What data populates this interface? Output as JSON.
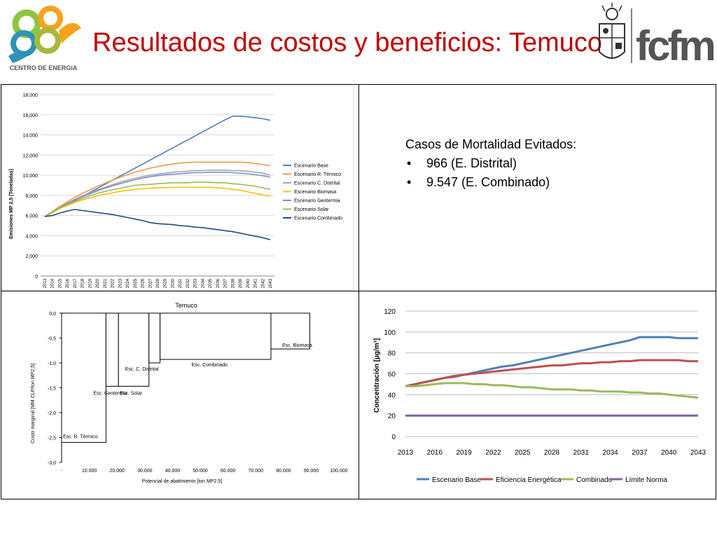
{
  "slide": {
    "title": "Resultados de costos y beneficios: Temuco",
    "logo_left_text": "CENTRO DE ENERGíA",
    "logo_right_text": "fcfm"
  },
  "mortality": {
    "heading": "Casos de Mortalidad Evitados:",
    "items": [
      "966 (E. Distrital)",
      "9.547 (E. Combinado)"
    ]
  },
  "chart_data": [
    {
      "id": "emissions",
      "type": "line",
      "title": "",
      "xlabel": "",
      "ylabel": "Emisiones MP 2,5 [Toneladas]",
      "x": [
        "2013",
        "2014",
        "2015",
        "2016",
        "2017",
        "2018",
        "2019",
        "2020",
        "2021",
        "2022",
        "2023",
        "2024",
        "2025",
        "2026",
        "2027",
        "2028",
        "2029",
        "2030",
        "2031",
        "2032",
        "2033",
        "2034",
        "2035",
        "2036",
        "2037",
        "2038",
        "2039",
        "2040",
        "2041",
        "2042",
        "2043"
      ],
      "ylim": [
        0,
        18000
      ],
      "yticks": [
        0,
        2000,
        4000,
        6000,
        8000,
        10000,
        12000,
        14000,
        16000,
        18000
      ],
      "ytick_labels": [
        "0",
        "2,000",
        "4,000",
        "6,000",
        "8,000",
        "10,000",
        "12,000",
        "14,000",
        "16,000",
        "18,000"
      ],
      "grid": true,
      "legend_position": "right",
      "colors": [
        "#4f81bd",
        "#f79646",
        "#a5a5a5",
        "#ffc000",
        "#7e8fd6",
        "#9bbb59",
        "#1f4e79"
      ],
      "series": [
        {
          "name": "Escenario Base",
          "values": [
            5900,
            6300,
            6700,
            7100,
            7500,
            7900,
            8300,
            8700,
            9100,
            9500,
            9900,
            10300,
            10700,
            11100,
            11500,
            11900,
            12300,
            12700,
            13100,
            13500,
            13900,
            14300,
            14700,
            15100,
            15500,
            15850,
            15850,
            15800,
            15700,
            15600,
            15450
          ]
        },
        {
          "name": "Escenario R. Térmico",
          "values": [
            5900,
            6400,
            6900,
            7350,
            7800,
            8200,
            8550,
            8900,
            9200,
            9500,
            9800,
            10050,
            10300,
            10500,
            10700,
            10850,
            11000,
            11100,
            11200,
            11250,
            11300,
            11300,
            11300,
            11300,
            11300,
            11300,
            11300,
            11250,
            11150,
            11050,
            10950
          ]
        },
        {
          "name": "Escenario C. Distrital",
          "values": [
            5900,
            6350,
            6800,
            7200,
            7600,
            7950,
            8250,
            8550,
            8800,
            9050,
            9300,
            9500,
            9700,
            9850,
            10000,
            10100,
            10200,
            10300,
            10350,
            10400,
            10450,
            10450,
            10500,
            10500,
            10500,
            10450,
            10450,
            10400,
            10300,
            10200,
            10000
          ]
        },
        {
          "name": "Escenario Biomasa",
          "values": [
            5900,
            6300,
            6700,
            7000,
            7300,
            7550,
            7750,
            7950,
            8100,
            8250,
            8400,
            8500,
            8600,
            8650,
            8700,
            8750,
            8750,
            8800,
            8800,
            8800,
            8800,
            8800,
            8800,
            8750,
            8700,
            8600,
            8500,
            8350,
            8200,
            8050,
            7900
          ]
        },
        {
          "name": "Escenario Geotermia",
          "values": [
            5900,
            6350,
            6800,
            7200,
            7550,
            7850,
            8150,
            8450,
            8700,
            8950,
            9150,
            9350,
            9550,
            9700,
            9850,
            9950,
            10050,
            10100,
            10150,
            10200,
            10250,
            10250,
            10300,
            10300,
            10300,
            10250,
            10200,
            10150,
            10050,
            9950,
            9800
          ]
        },
        {
          "name": "Escenario Solar",
          "values": [
            5900,
            6350,
            6750,
            7100,
            7400,
            7700,
            7950,
            8200,
            8400,
            8550,
            8700,
            8850,
            9000,
            9050,
            9100,
            9150,
            9200,
            9250,
            9250,
            9250,
            9300,
            9300,
            9300,
            9250,
            9250,
            9150,
            9100,
            9000,
            8900,
            8750,
            8600
          ]
        },
        {
          "name": "Escenario Combinado",
          "values": [
            5900,
            6000,
            6250,
            6450,
            6600,
            6500,
            6400,
            6300,
            6200,
            6100,
            5950,
            5800,
            5650,
            5500,
            5300,
            5200,
            5150,
            5100,
            5000,
            4950,
            4850,
            4800,
            4700,
            4600,
            4500,
            4400,
            4250,
            4100,
            3950,
            3800,
            3600
          ]
        }
      ]
    },
    {
      "id": "mac",
      "type": "bar",
      "title": "Temuco",
      "xlabel": "Potencial de abatimiento [ton MP2,5]",
      "ylabel": "Costo marginal [MM CLP/ton MP2,5]",
      "xlim": [
        0,
        100000
      ],
      "xticks": [
        0,
        10000,
        20000,
        30000,
        40000,
        50000,
        60000,
        70000,
        80000,
        90000,
        100000
      ],
      "xtick_labels": [
        "-",
        "10.000",
        "20.000",
        "30.000",
        "40.000",
        "50.000",
        "60.000",
        "70.000",
        "80.000",
        "90.000",
        "100.000"
      ],
      "ylim": [
        -3.0,
        0
      ],
      "yticks": [
        0,
        -0.5,
        -1.0,
        -1.5,
        -2.0,
        -2.5,
        -3.0
      ],
      "ytick_labels": [
        "0,0",
        "-0,5",
        "-1,0",
        "-1,5",
        "-2,0",
        "-2,5",
        "-3,0"
      ],
      "bars": [
        {
          "name": "Esc. R. Térmico",
          "x0": 0,
          "x1": 16000,
          "value": -2.6
        },
        {
          "name": "Esc. Geotermia",
          "x0": 16000,
          "x1": 20500,
          "value": -1.47
        },
        {
          "name": "Esc. Solar",
          "x0": 20500,
          "x1": 31500,
          "value": -1.47
        },
        {
          "name": "Esc. C. Distrital",
          "x0": 31500,
          "x1": 35500,
          "value": -1.0
        },
        {
          "name": "Esc. Combinado",
          "x0": 35500,
          "x1": 75500,
          "value": -0.93
        },
        {
          "name": "Esc. Biomasa",
          "x0": 75500,
          "x1": 89500,
          "value": -0.72
        }
      ]
    },
    {
      "id": "concentration",
      "type": "line",
      "title": "",
      "xlabel": "",
      "ylabel": "Concentración [µg/m³]",
      "x": [
        2013,
        2014,
        2015,
        2016,
        2017,
        2018,
        2019,
        2020,
        2021,
        2022,
        2023,
        2024,
        2025,
        2026,
        2027,
        2028,
        2029,
        2030,
        2031,
        2032,
        2033,
        2034,
        2035,
        2036,
        2037,
        2038,
        2039,
        2040,
        2041,
        2042,
        2043
      ],
      "xtick_labels": [
        "2013",
        "2016",
        "2019",
        "2022",
        "2025",
        "2028",
        "2031",
        "2034",
        "2037",
        "2040",
        "2043"
      ],
      "ylim": [
        0,
        120
      ],
      "yticks": [
        0,
        20,
        40,
        60,
        80,
        100,
        120
      ],
      "grid": true,
      "legend_position": "bottom",
      "colors": [
        "#4f81bd",
        "#c0504d",
        "#9bbb59",
        "#8064a2"
      ],
      "series": [
        {
          "name": "Escenario Base",
          "values": [
            48,
            50,
            52,
            54,
            56,
            58,
            59,
            61,
            63,
            65,
            67,
            68,
            70,
            72,
            74,
            76,
            78,
            80,
            82,
            84,
            86,
            88,
            90,
            92,
            95,
            95,
            95,
            95,
            94,
            94,
            94
          ]
        },
        {
          "name": "Eficiencia Energética",
          "values": [
            48,
            50,
            52,
            54,
            56,
            57,
            59,
            60,
            61,
            62,
            63,
            64,
            65,
            66,
            67,
            68,
            68,
            69,
            70,
            70,
            71,
            71,
            72,
            72,
            73,
            73,
            73,
            73,
            73,
            72,
            72
          ]
        },
        {
          "name": "Combinado",
          "values": [
            48,
            48,
            49,
            50,
            51,
            51,
            51,
            50,
            50,
            49,
            49,
            48,
            47,
            47,
            46,
            45,
            45,
            45,
            44,
            44,
            43,
            43,
            43,
            42,
            42,
            41,
            41,
            40,
            39,
            38,
            37
          ]
        },
        {
          "name": "Límite Norma",
          "values": [
            20,
            20,
            20,
            20,
            20,
            20,
            20,
            20,
            20,
            20,
            20,
            20,
            20,
            20,
            20,
            20,
            20,
            20,
            20,
            20,
            20,
            20,
            20,
            20,
            20,
            20,
            20,
            20,
            20,
            20,
            20
          ]
        }
      ]
    }
  ]
}
